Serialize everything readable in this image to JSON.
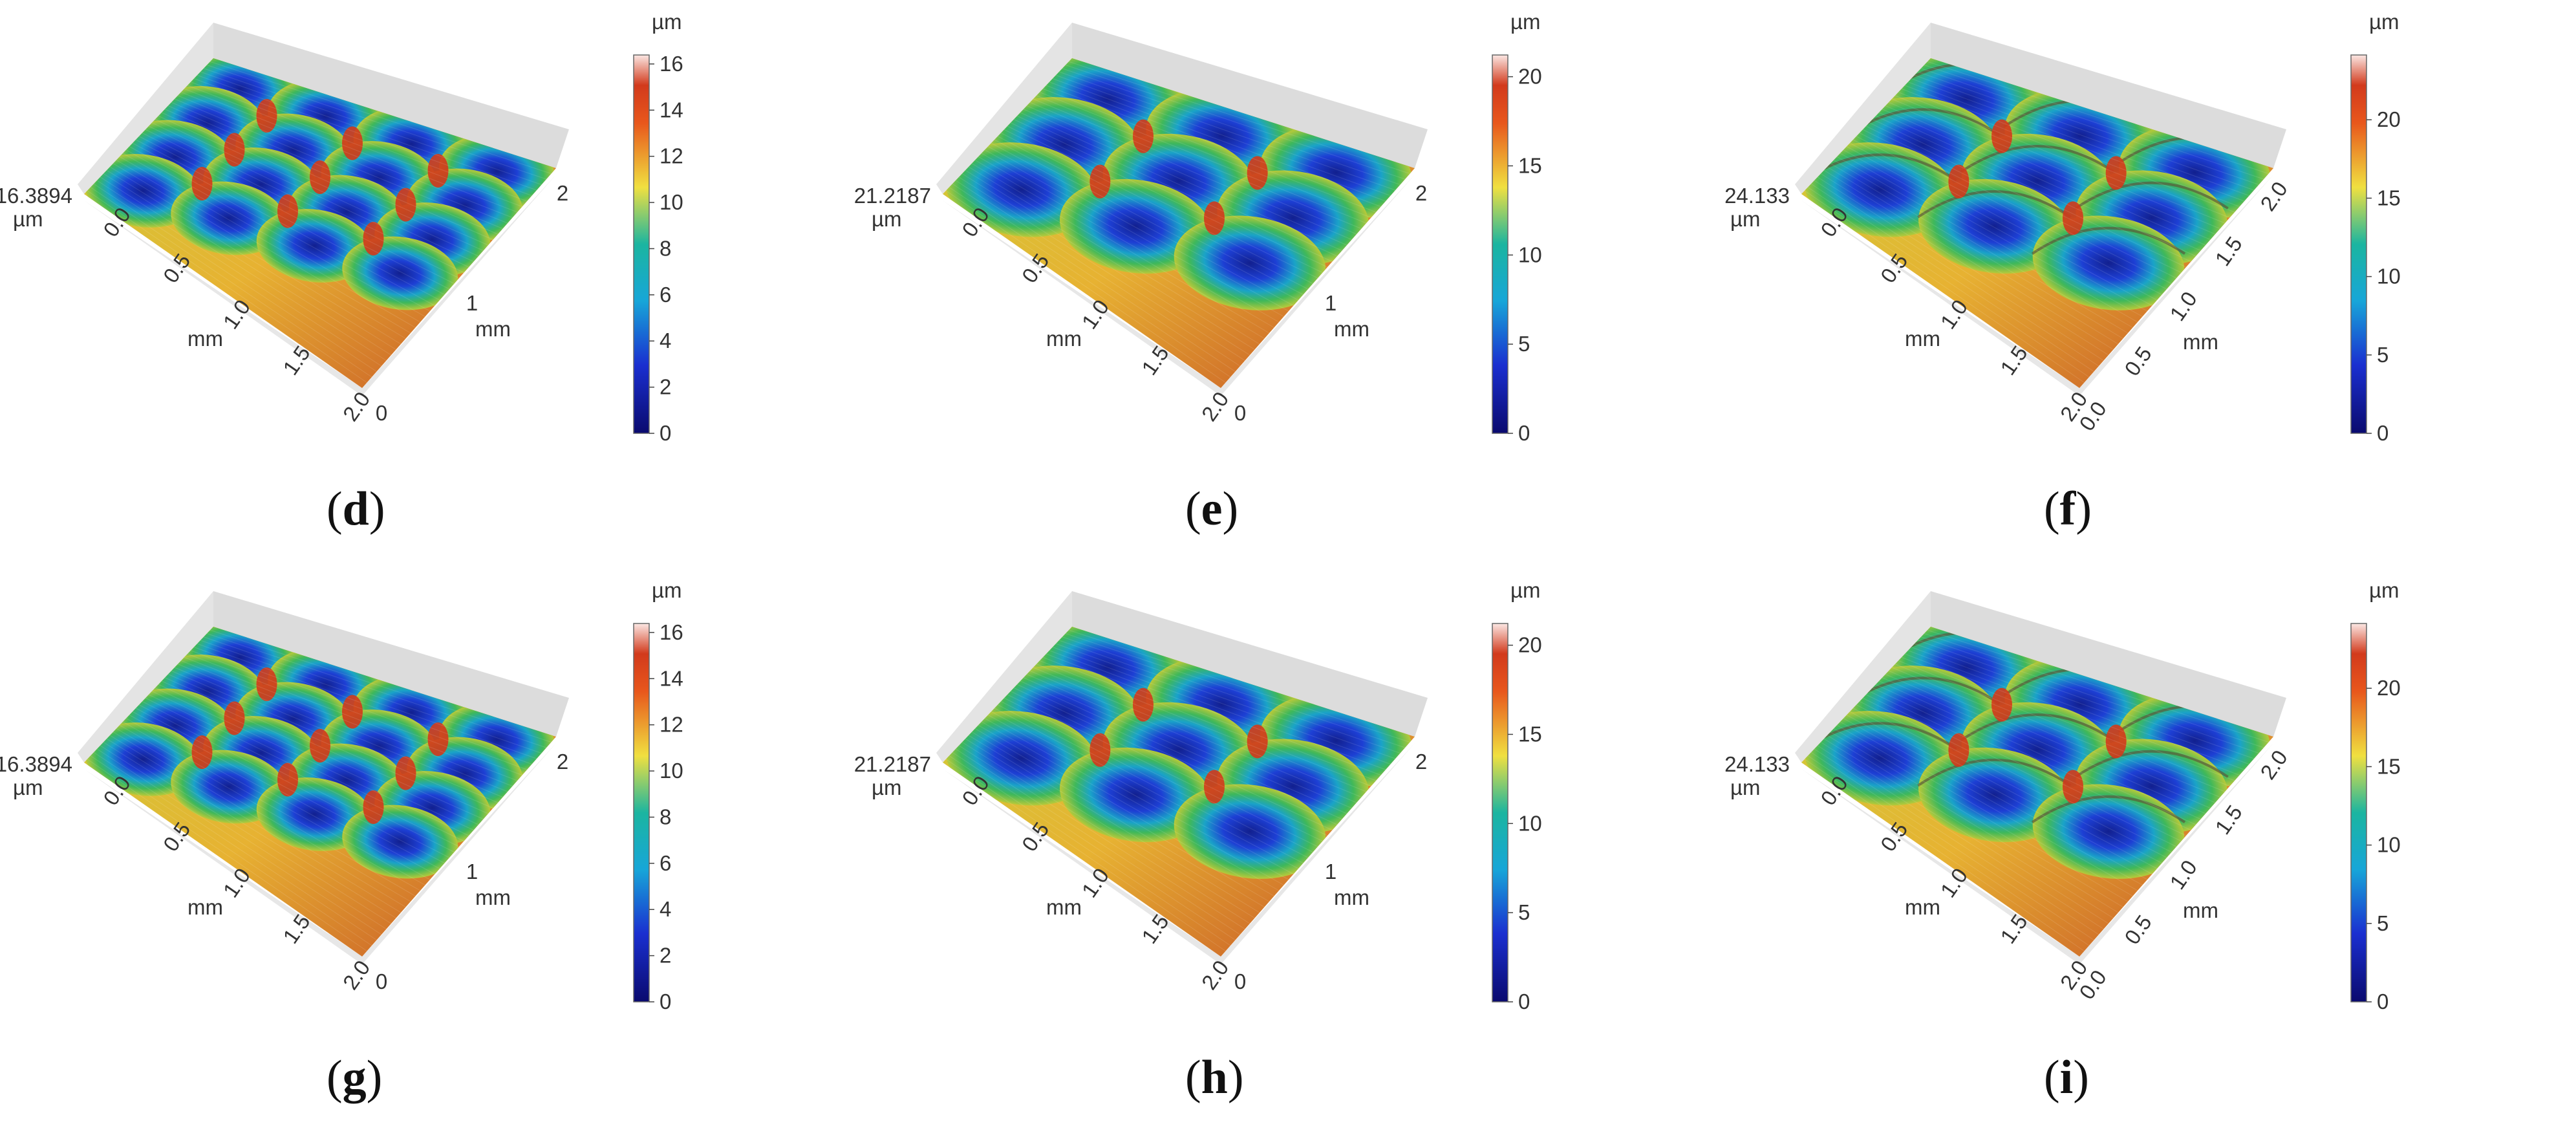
{
  "panels": [
    {
      "label": "d",
      "zmax_text": "16.3894",
      "zunit": "µm",
      "colorbar": {
        "unit": "µm",
        "max": 16.3894,
        "ticks": [
          "0",
          "2",
          "4",
          "6",
          "8",
          "10",
          "12",
          "14",
          "16"
        ]
      },
      "x_ticks": [
        "0.0",
        "0.5",
        "1.0",
        "1.5",
        "2.0"
      ],
      "x_unit": "mm",
      "y_ticks": [
        "0",
        "1",
        "2"
      ],
      "y_unit": "mm",
      "pattern": "round-dimples"
    },
    {
      "label": "e",
      "zmax_text": "21.2187",
      "zunit": "µm",
      "colorbar": {
        "unit": "µm",
        "max": 21.2187,
        "ticks": [
          "0",
          "5",
          "10",
          "15",
          "20"
        ]
      },
      "x_ticks": [
        "0.0",
        "0.5",
        "1.0",
        "1.5",
        "2.0"
      ],
      "x_unit": "mm",
      "y_ticks": [
        "0",
        "1",
        "2"
      ],
      "y_unit": "mm",
      "pattern": "round-dimples-large"
    },
    {
      "label": "f",
      "zmax_text": "24.133",
      "zunit": "µm",
      "colorbar": {
        "unit": "µm",
        "max": 24.133,
        "ticks": [
          "0",
          "5",
          "10",
          "15",
          "20"
        ]
      },
      "x_ticks": [
        "0.0",
        "0.5",
        "1.0",
        "1.5",
        "2.0"
      ],
      "x_unit": "mm",
      "y_ticks": [
        "0.0",
        "0.5",
        "1.0",
        "1.5",
        "2.0"
      ],
      "y_unit": "mm",
      "pattern": "scale-dimples"
    },
    {
      "label": "g",
      "zmax_text": "16.3894",
      "zunit": "µm",
      "colorbar": {
        "unit": "µm",
        "max": 16.3894,
        "ticks": [
          "0",
          "2",
          "4",
          "6",
          "8",
          "10",
          "12",
          "14",
          "16"
        ]
      },
      "x_ticks": [
        "0.0",
        "0.5",
        "1.0",
        "1.5",
        "2.0"
      ],
      "x_unit": "mm",
      "y_ticks": [
        "0",
        "1",
        "2"
      ],
      "y_unit": "mm",
      "pattern": "round-dimples"
    },
    {
      "label": "h",
      "zmax_text": "21.2187",
      "zunit": "µm",
      "colorbar": {
        "unit": "µm",
        "max": 21.2187,
        "ticks": [
          "0",
          "5",
          "10",
          "15",
          "20"
        ]
      },
      "x_ticks": [
        "0.0",
        "0.5",
        "1.0",
        "1.5",
        "2.0"
      ],
      "x_unit": "mm",
      "y_ticks": [
        "0",
        "1",
        "2"
      ],
      "y_unit": "mm",
      "pattern": "round-dimples-large"
    },
    {
      "label": "i",
      "zmax_text": "24.133",
      "zunit": "µm",
      "colorbar": {
        "unit": "µm",
        "max": 24.133,
        "ticks": [
          "0",
          "5",
          "10",
          "15",
          "20"
        ]
      },
      "x_ticks": [
        "0.0",
        "0.5",
        "1.0",
        "1.5",
        "2.0"
      ],
      "x_unit": "mm",
      "y_ticks": [
        "0.0",
        "0.5",
        "1.0",
        "1.5",
        "2.0"
      ],
      "y_unit": "mm",
      "pattern": "scale-dimples"
    }
  ],
  "colors": {
    "low": "#0a0a6e",
    "mid": "#1bb5a0",
    "high": "#f0e040",
    "peak": "#d23a1c",
    "top": "#fbe7e4"
  }
}
